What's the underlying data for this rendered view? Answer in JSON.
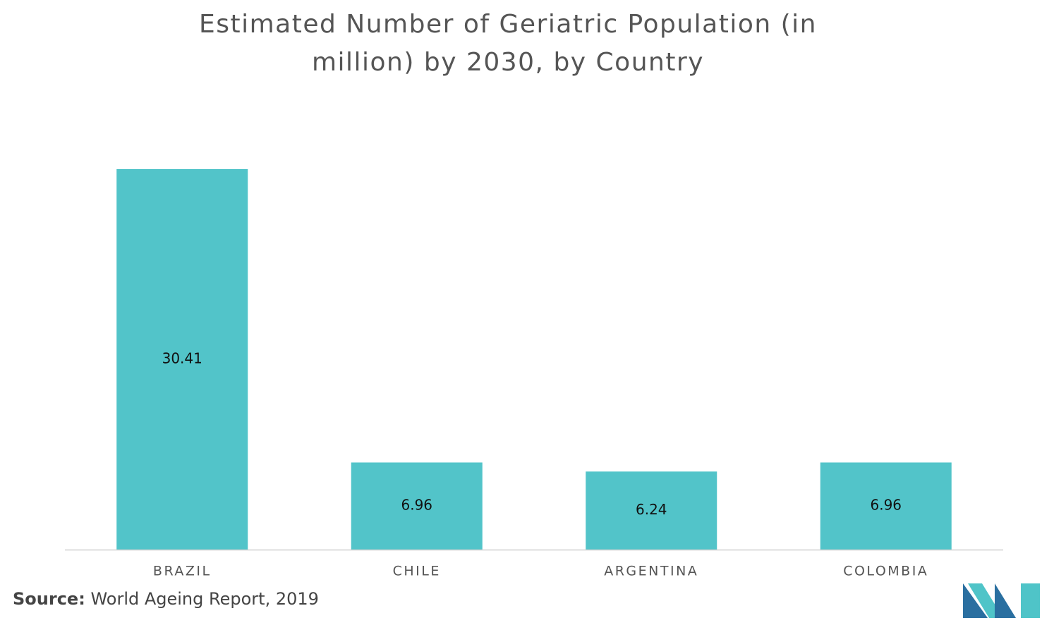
{
  "chart_data": {
    "type": "bar",
    "title": "Estimated Number of Geriatric Population (in million) by 2030, by Country",
    "categories": [
      "BRAZIL",
      "CHILE",
      "ARGENTINA",
      "COLOMBIA"
    ],
    "values": [
      30.41,
      6.96,
      6.24,
      6.96
    ],
    "color": "#52c4c9"
  },
  "source": {
    "label": "Source:",
    "text": "World Ageing Report, 2019"
  }
}
